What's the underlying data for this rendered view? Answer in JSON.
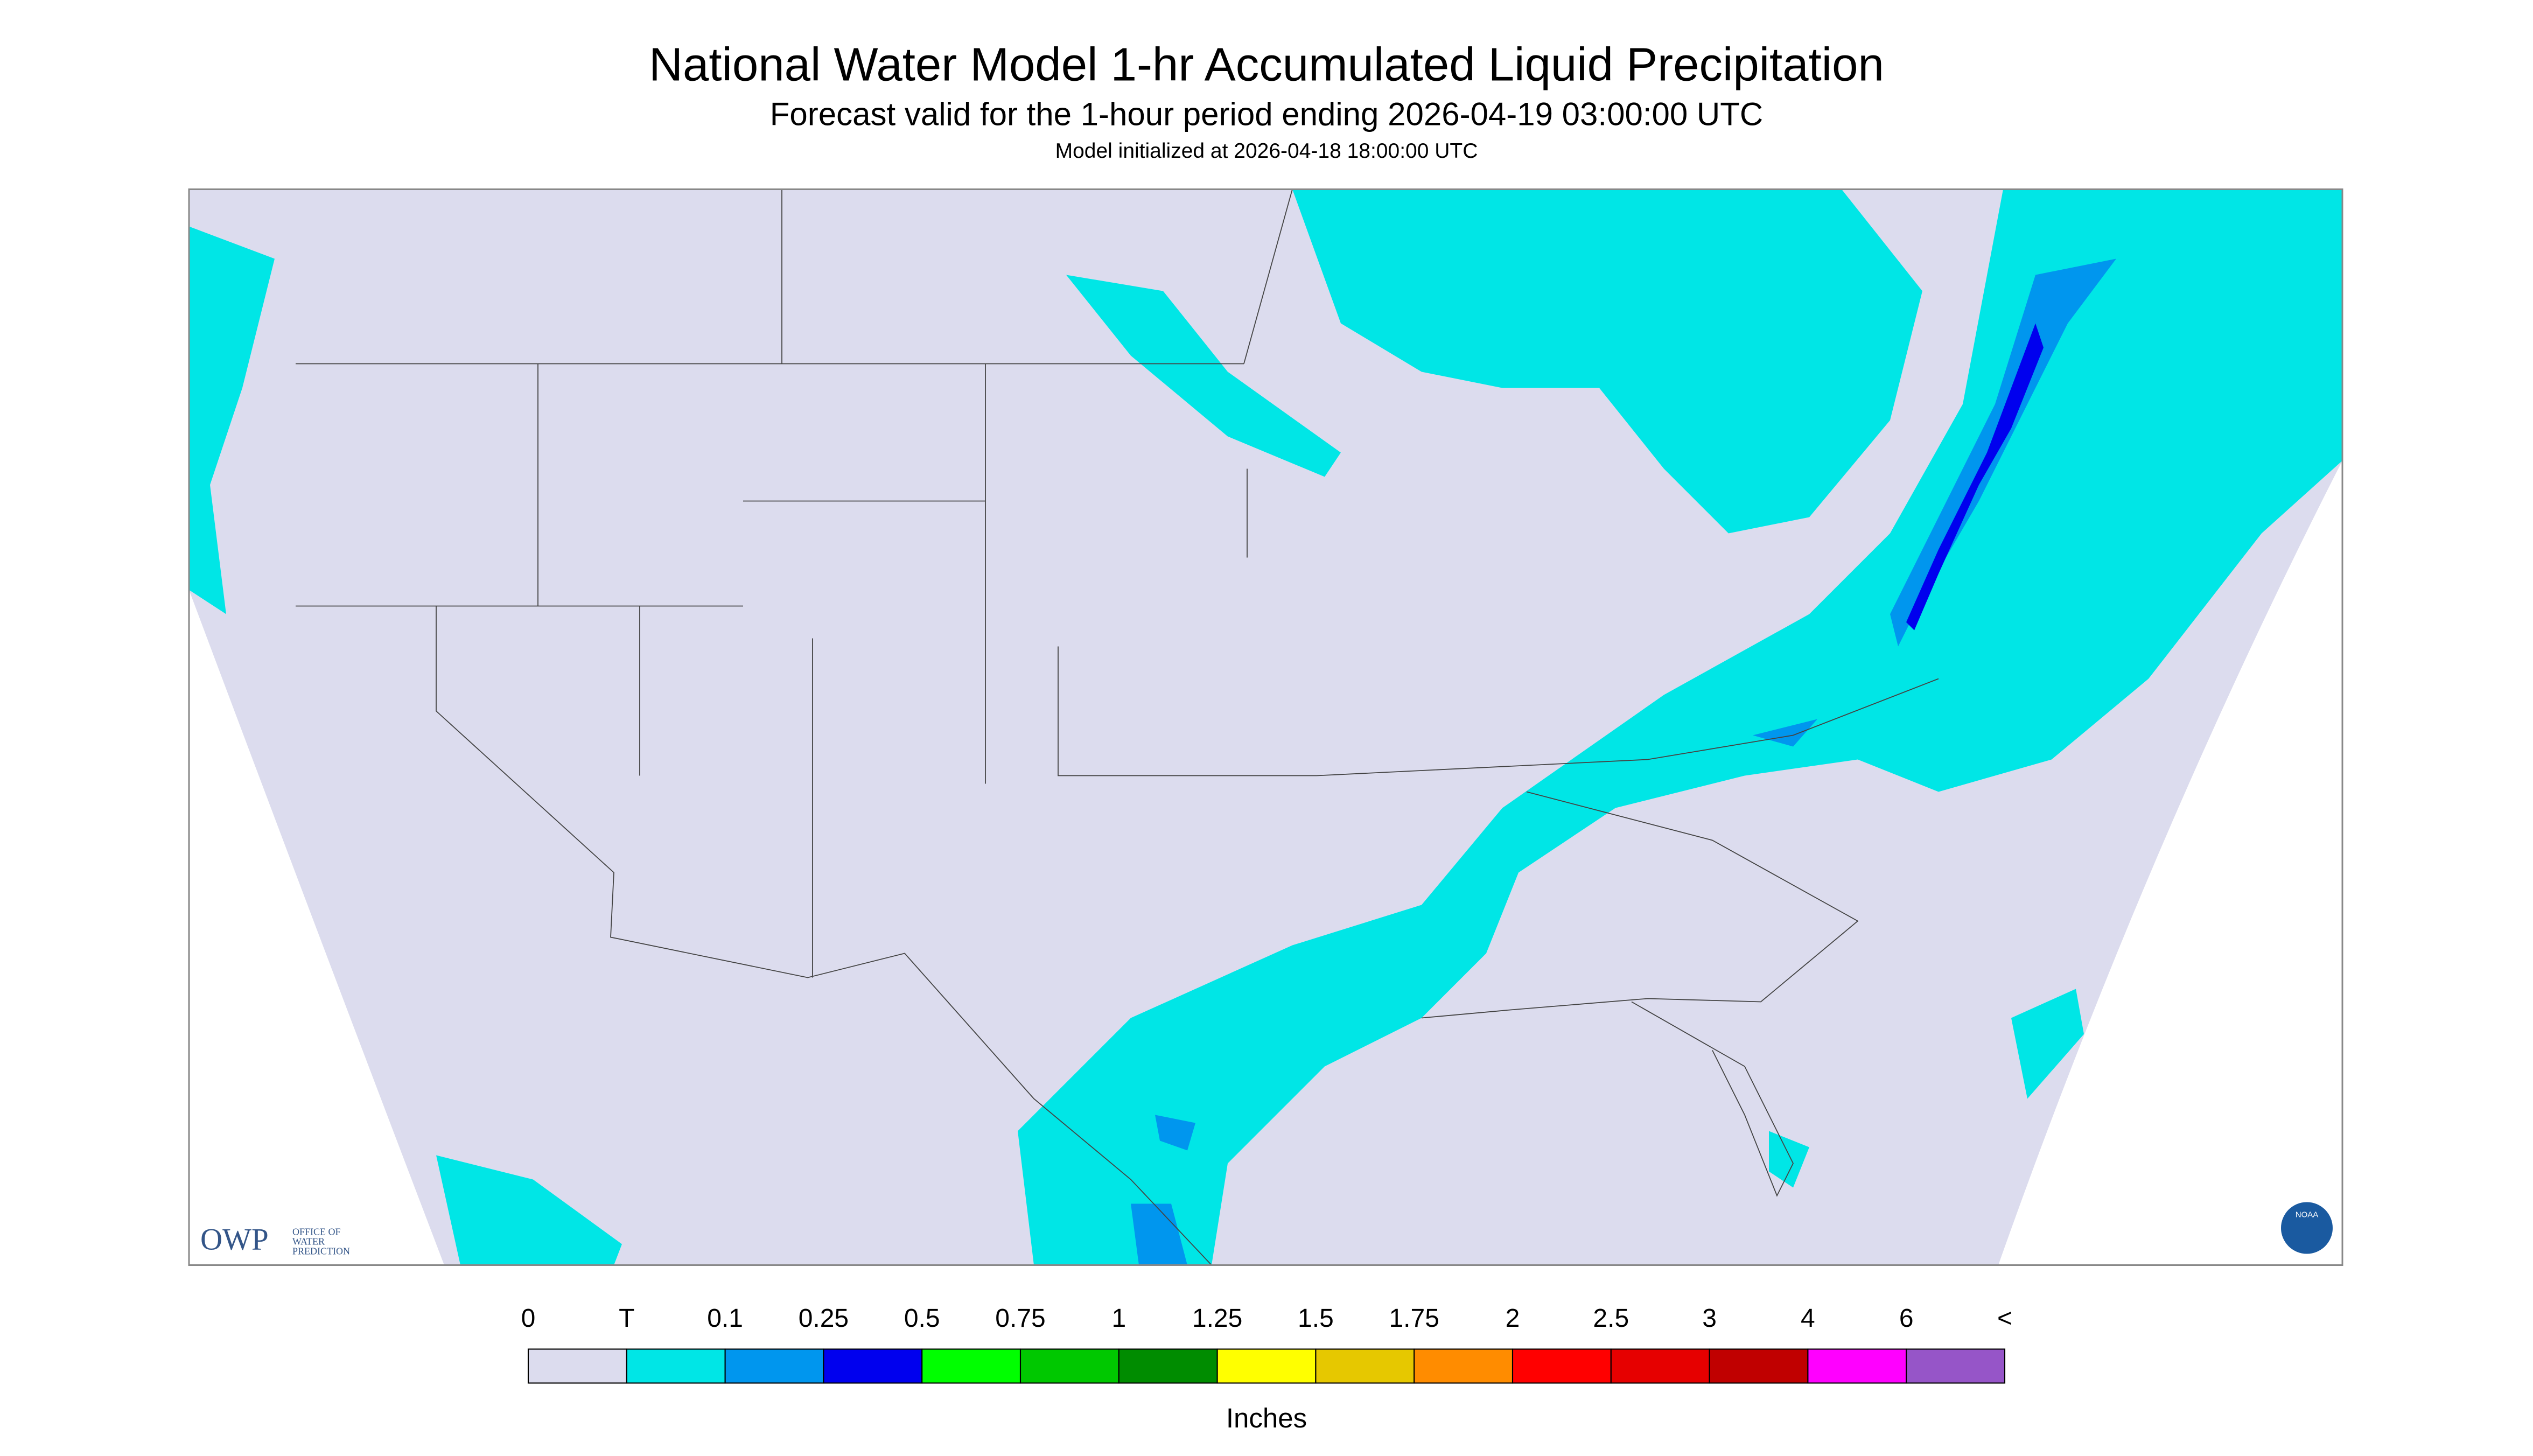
{
  "header": {
    "title": "National Water Model 1-hr Accumulated Liquid Precipitation",
    "subtitle": "Forecast valid for the 1-hour period ending 2026-04-19 03:00:00 UTC",
    "init": "Model initialized at 2026-04-18 18:00:00 UTC"
  },
  "legend": {
    "labels": [
      "0",
      "T",
      "0.1",
      "0.25",
      "0.5",
      "0.75",
      "1",
      "1.25",
      "1.5",
      "1.75",
      "2",
      "2.5",
      "3",
      "4",
      "6",
      "<"
    ],
    "colors": [
      "#dcdcee",
      "#00e6e6",
      "#0096ee",
      "#0000ee",
      "#00ff00",
      "#00c800",
      "#008c00",
      "#ffff00",
      "#e6c800",
      "#ff8c00",
      "#ff0000",
      "#e60000",
      "#c00000",
      "#ff00ff",
      "#9655c8"
    ],
    "unit": "Inches"
  },
  "logos": {
    "owp": "OWP",
    "owp_line1": "OFFICE OF",
    "owp_line2": "WATER",
    "owp_line3": "PREDICTION",
    "noaa": "NOAA"
  }
}
